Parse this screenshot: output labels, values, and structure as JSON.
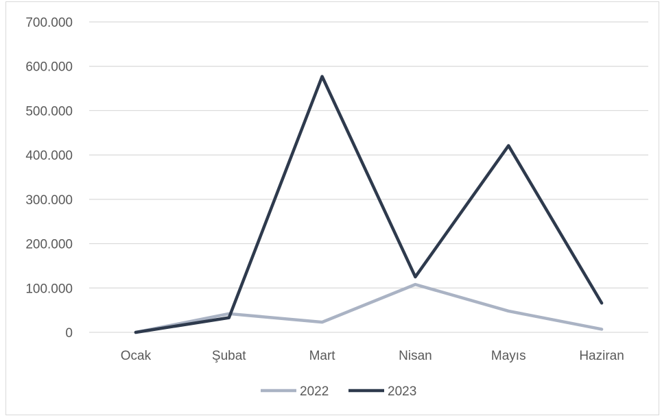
{
  "chart_data": {
    "type": "line",
    "categories": [
      "Ocak",
      "Şubat",
      "Mart",
      "Nisan",
      "Mayıs",
      "Haziran"
    ],
    "series": [
      {
        "name": "2022",
        "color": "#aab3c4",
        "values": [
          0,
          42000,
          23000,
          108000,
          48000,
          7000
        ]
      },
      {
        "name": "2023",
        "color": "#2e3a4d",
        "values": [
          0,
          33000,
          577000,
          125000,
          421000,
          66000
        ]
      }
    ],
    "ylim": [
      0,
      700000
    ],
    "yticks": [
      0,
      100000,
      200000,
      300000,
      400000,
      500000,
      600000,
      700000
    ],
    "ytick_labels": [
      "0",
      "100.000",
      "200.000",
      "300.000",
      "400.000",
      "500.000",
      "600.000",
      "700.000"
    ],
    "grid": true,
    "legend_position": "bottom"
  }
}
